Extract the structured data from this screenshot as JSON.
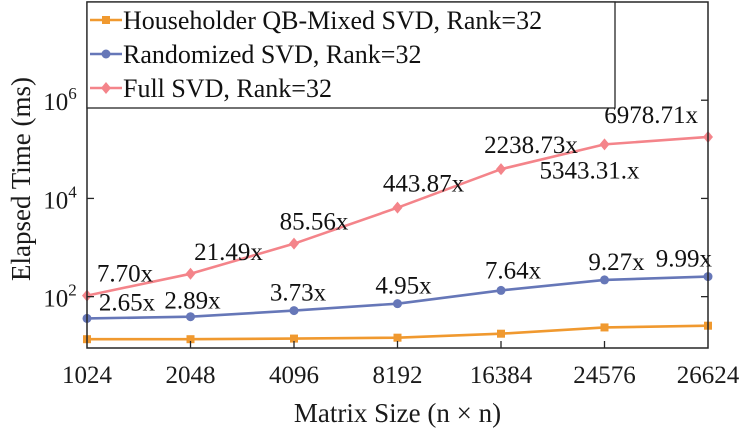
{
  "chart_data": {
    "type": "line",
    "title": "",
    "xlabel": "Matrix Size (n × n)",
    "ylabel": "Elapsed Time (ms)",
    "yscale": "log",
    "ylim": [
      9,
      100000000
    ],
    "grid": false,
    "legend_position": "top-left",
    "categories": [
      "1024",
      "2048",
      "4096",
      "8192",
      "16384",
      "24576",
      "26624"
    ],
    "y_ticks": [
      {
        "value": 100,
        "base": "10",
        "exp": "2"
      },
      {
        "value": 10000,
        "base": "10",
        "exp": "4"
      },
      {
        "value": 1000000,
        "base": "10",
        "exp": "6"
      }
    ],
    "series": [
      {
        "name": "Householder QB-Mixed SVD, Rank=32",
        "color": "#f0992f",
        "marker": "square",
        "values": [
          13.6,
          13.6,
          14.0,
          14.6,
          17.6,
          23.6,
          25.6
        ]
      },
      {
        "name": "Randomized SVD, Rank=32",
        "color": "#6677b8",
        "marker": "circle",
        "values": [
          36,
          39,
          52,
          72,
          134,
          219,
          256
        ],
        "data_labels": [
          "2.65x",
          "2.89x",
          "3.73x",
          "4.95x",
          "7.64x",
          "9.27x",
          "9.99x"
        ]
      },
      {
        "name": "Full SVD, Rank=32",
        "color": "#f4848a",
        "marker": "diamond",
        "values": [
          105,
          292,
          1198,
          6480,
          39400,
          126100,
          178600
        ],
        "data_labels": [
          "7.70x",
          "21.49x",
          "85.56x",
          "443.87x",
          "2238.73x",
          "5343.31.x",
          "6978.71x"
        ]
      }
    ]
  }
}
